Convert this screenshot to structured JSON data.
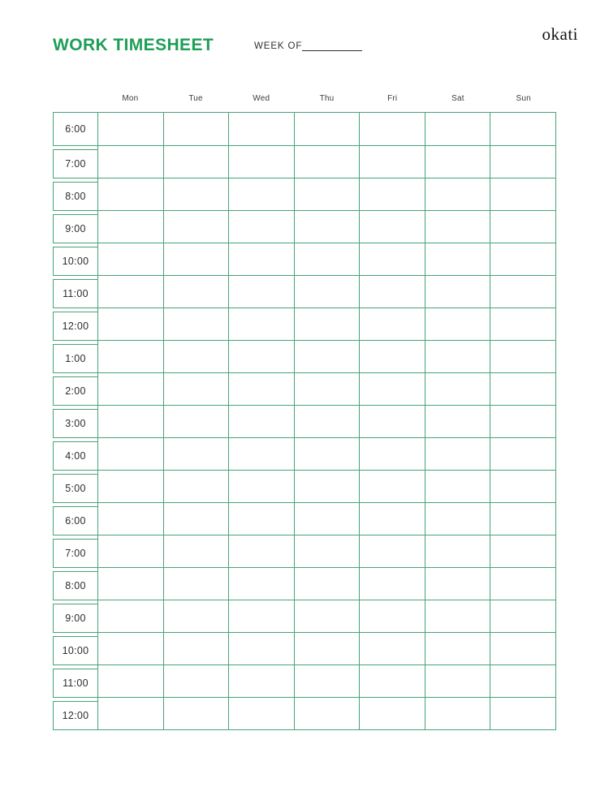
{
  "header": {
    "title": "WORK TIMESHEET",
    "week_of_label": "WEEK OF",
    "brand": "okati"
  },
  "colors": {
    "title_green": "#1f9e58",
    "grid_green": "#46a478",
    "text_dark": "#2d2d2d"
  },
  "timesheet": {
    "days": [
      "Mon",
      "Tue",
      "Wed",
      "Thu",
      "Fri",
      "Sat",
      "Sun"
    ],
    "times": [
      "6:00",
      "7:00",
      "8:00",
      "9:00",
      "10:00",
      "11:00",
      "12:00",
      "1:00",
      "2:00",
      "3:00",
      "4:00",
      "5:00",
      "6:00",
      "7:00",
      "8:00",
      "9:00",
      "10:00",
      "11:00",
      "12:00"
    ]
  }
}
